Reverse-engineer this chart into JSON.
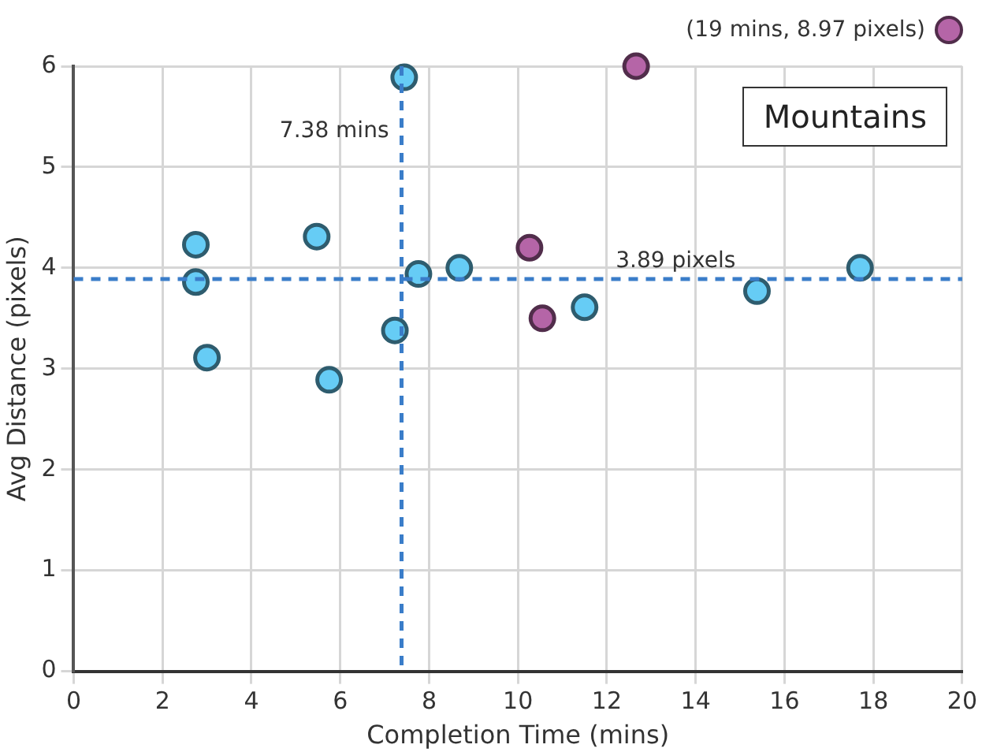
{
  "chart_data": {
    "type": "scatter",
    "title": "Mountains",
    "xlabel": "Completion Time (mins)",
    "ylabel": "Avg Distance (pixels)",
    "xlim": [
      0,
      20
    ],
    "xticks": [
      0,
      2,
      4,
      6,
      8,
      10,
      12,
      14,
      16,
      18,
      20
    ],
    "ylim": [
      0,
      6
    ],
    "yticks": [
      0,
      1,
      2,
      3,
      4,
      5,
      6
    ],
    "grid": true,
    "marker": "circle",
    "series": [
      {
        "color": "#66ccf5",
        "x": [
          2.75,
          2.75,
          3.0,
          5.47,
          5.75,
          7.23,
          7.44,
          7.76,
          8.68,
          11.5,
          15.38,
          17.7
        ],
        "values": [
          4.23,
          3.86,
          3.11,
          4.31,
          2.89,
          3.38,
          5.89,
          3.94,
          4.0,
          3.61,
          3.77,
          4.0
        ]
      },
      {
        "color": "#b565a7",
        "x": [
          10.26,
          10.55,
          12.66
        ],
        "values": [
          4.2,
          3.5,
          6.0
        ]
      }
    ],
    "ref_lines": [
      {
        "axis": "x",
        "value": 7.38,
        "label": "7.38 mins",
        "color": "#3a7dc9",
        "line_style": "dashed"
      },
      {
        "axis": "y",
        "value": 3.89,
        "label": "3.89 pixels",
        "color": "#3a7dc9",
        "line_style": "dashed"
      }
    ],
    "annotations": [
      "(19 mins, 8.97 pixels)"
    ]
  }
}
